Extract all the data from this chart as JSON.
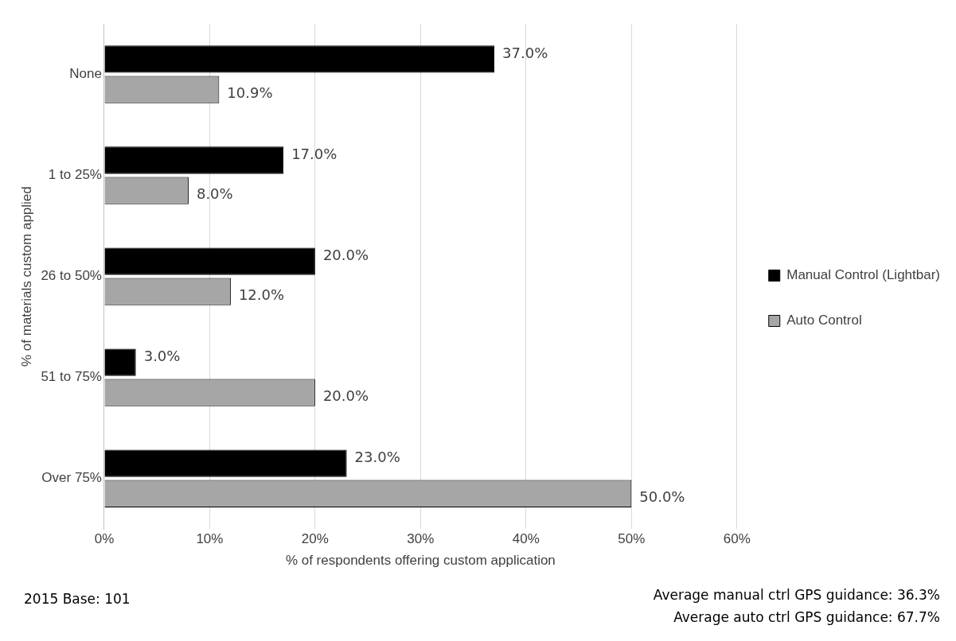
{
  "chart_data": {
    "type": "bar",
    "orientation": "horizontal",
    "categories": [
      "None",
      "1 to 25%",
      "26 to 50%",
      "51 to 75%",
      "Over 75%"
    ],
    "series": [
      {
        "name": "Manual Control (Lightbar)",
        "color": "#000000",
        "values": [
          37.0,
          17.0,
          20.0,
          3.0,
          23.0
        ],
        "value_labels": [
          "37.0%",
          "17.0%",
          "20.0%",
          "3.0%",
          "23.0%"
        ]
      },
      {
        "name": "Auto Control",
        "color": "#a6a6a6",
        "values": [
          10.9,
          8.0,
          12.0,
          20.0,
          50.0
        ],
        "value_labels": [
          "10.9%",
          "8.0%",
          "12.0%",
          "20.0%",
          "50.0%"
        ]
      }
    ],
    "xlabel": "% of respondents offering custom application",
    "ylabel": "% of materials custom applied",
    "xlim": [
      0,
      60
    ],
    "xticks": [
      {
        "value": 0,
        "label": "0%"
      },
      {
        "value": 10,
        "label": "10%"
      },
      {
        "value": 20,
        "label": "20%"
      },
      {
        "value": 30,
        "label": "30%"
      },
      {
        "value": 40,
        "label": "40%"
      },
      {
        "value": 50,
        "label": "50%"
      },
      {
        "value": 60,
        "label": "60%"
      }
    ],
    "grid": "x",
    "legend": "right",
    "annotations": [
      "2015 Base: 101",
      "Average manual ctrl GPS guidance: 36.3%",
      "Average auto ctrl GPS guidance: 67.7%"
    ]
  }
}
